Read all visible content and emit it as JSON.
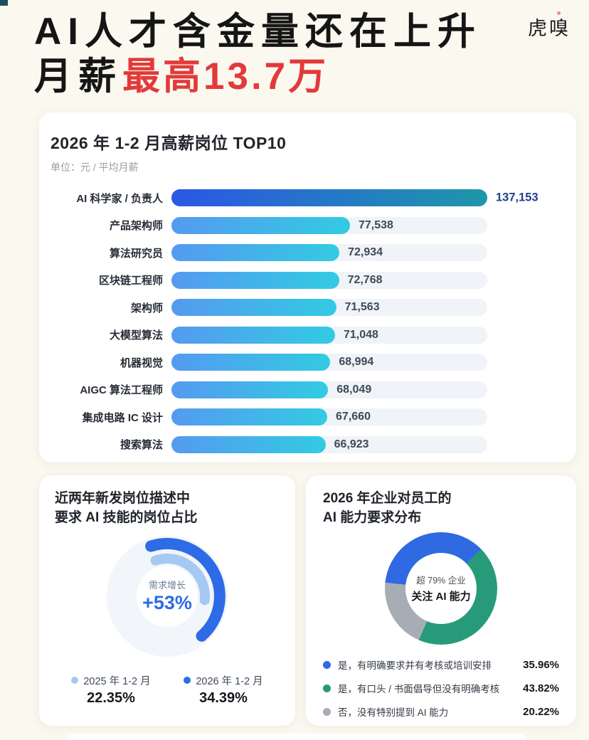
{
  "header": {
    "title_line1": "AI人才含金量还在上升",
    "title_line2_black": "月薪",
    "title_line2_red": "最高13.7万",
    "logo": "虎嗅"
  },
  "chart_data": [
    {
      "type": "bar",
      "orientation": "horizontal",
      "title": "2026 年 1-2 月高薪岗位 TOP10",
      "unit_label": "单位：元 / 平均月薪",
      "categories": [
        "AI 科学家 / 负责人",
        "产品架构师",
        "算法研究员",
        "区块链工程师",
        "架构师",
        "大模型算法",
        "机器视觉",
        "AIGC 算法工程师",
        "集成电路 IC 设计",
        "搜索算法"
      ],
      "values": [
        137153,
        77538,
        72934,
        72768,
        71563,
        71048,
        68994,
        68049,
        67660,
        66923
      ],
      "value_labels": [
        "137,153",
        "77,538",
        "72,934",
        "72,768",
        "71,563",
        "71,048",
        "68,994",
        "68,049",
        "67,660",
        "66,923"
      ],
      "xlim": [
        0,
        137153
      ],
      "grid": false,
      "colors": {
        "first_gradient": [
          "#2b57e6",
          "#1e97a9"
        ],
        "gradient": [
          "#559af0",
          "#32cbe3"
        ],
        "track": "#f0f3f7",
        "value_text": "#3e4a58",
        "first_value_text": "#223f8f"
      }
    },
    {
      "type": "arc-progress",
      "title_line1": "近两年新发岗位描述中",
      "title_line2": "要求 AI 技能的岗位占比",
      "center_label": "需求增长",
      "center_value": "+53%",
      "legend_position": "bottom",
      "series": [
        {
          "name": "2025 年 1-2 月",
          "value_pct": 22.35,
          "display": "22.35%",
          "color": "#a6c9f3",
          "arc": {
            "radius": 53,
            "width": 14,
            "start_deg": -18,
            "sweep_deg": 114
          }
        },
        {
          "name": "2026 年 1-2 月",
          "value_pct": 34.39,
          "display": "34.39%",
          "color": "#2e6be6",
          "arc": {
            "radius": 74,
            "width": 16,
            "start_deg": -18,
            "sweep_deg": 157
          }
        }
      ]
    },
    {
      "type": "pie",
      "title_line1": "2026 年企业对员工的",
      "title_line2": "AI 能力要求分布",
      "center_line1": "超 79% 企业",
      "center_line2": "关注 AI 能力",
      "start_deg": 276,
      "legend_position": "bottom",
      "slices": [
        {
          "label": "是，有明确要求并有考核或培训安排",
          "pct": 35.96,
          "display": "35.96%",
          "color": "#2f6ae3"
        },
        {
          "label": "是，有口头 / 书面倡导但没有明确考核",
          "pct": 43.82,
          "display": "43.82%",
          "color": "#279b79"
        },
        {
          "label": "否，没有特别提到 AI 能力",
          "pct": 20.22,
          "display": "20.22%",
          "color": "#a7adb4"
        }
      ]
    }
  ]
}
